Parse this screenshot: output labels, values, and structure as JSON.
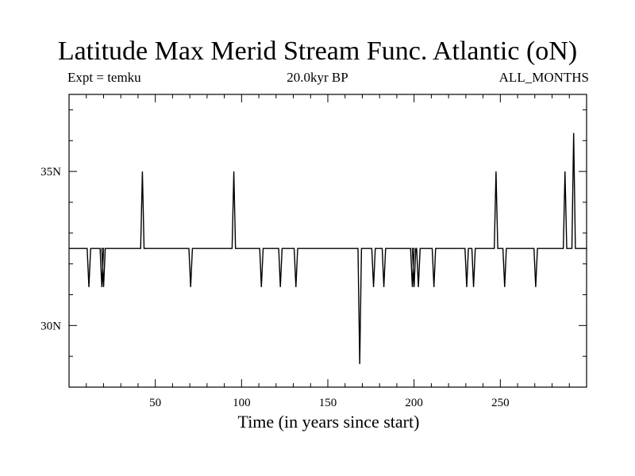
{
  "chart_data": {
    "type": "line",
    "title": "Latitude Max Merid Stream Func. Atlantic (oN)",
    "subtitle_left": "Expt = temku",
    "subtitle_center": "20.0kyr BP",
    "subtitle_right": "ALL_MONTHS",
    "xlabel": "Time (in years since start)",
    "ylabel": "",
    "xlim": [
      0,
      300
    ],
    "ylim": [
      28,
      37.5
    ],
    "x_ticks": [
      50,
      100,
      150,
      200,
      250
    ],
    "x_tick_labels": [
      "50",
      "100",
      "150",
      "200",
      "250"
    ],
    "y_ticks": [
      30,
      35
    ],
    "y_tick_labels": [
      "30N",
      "35N"
    ],
    "series": [
      {
        "name": "Latitude Max Merid Stream Func.",
        "color": "#000000",
        "baseline": 32.5,
        "events": [
          [
            11.5,
            31.25
          ],
          [
            19.0,
            31.25
          ],
          [
            20.0,
            31.25
          ],
          [
            42.5,
            35.0
          ],
          [
            70.5,
            31.25
          ],
          [
            95.5,
            35.0
          ],
          [
            111.5,
            31.25
          ],
          [
            122.5,
            31.25
          ],
          [
            131.5,
            31.25
          ],
          [
            168.5,
            28.75
          ],
          [
            176.5,
            31.25
          ],
          [
            182.5,
            31.25
          ],
          [
            199.0,
            31.25
          ],
          [
            200.0,
            31.25
          ],
          [
            202.5,
            31.25
          ],
          [
            211.5,
            31.25
          ],
          [
            230.5,
            31.25
          ],
          [
            234.5,
            31.25
          ],
          [
            247.5,
            35.0
          ],
          [
            252.5,
            31.25
          ],
          [
            270.5,
            31.25
          ],
          [
            287.5,
            35.0
          ],
          [
            292.5,
            36.25
          ]
        ]
      }
    ]
  }
}
